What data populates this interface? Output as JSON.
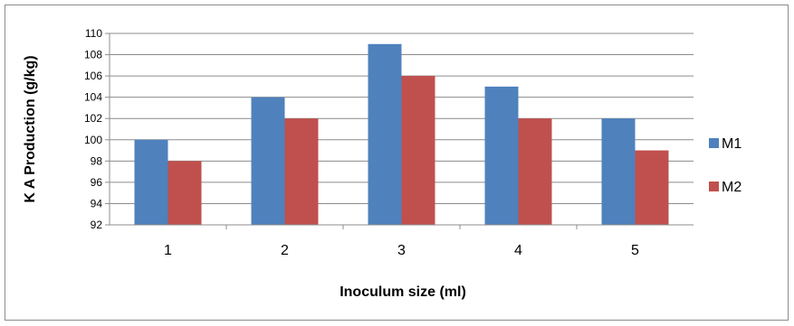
{
  "chart_data": {
    "type": "bar",
    "categories": [
      "1",
      "2",
      "3",
      "4",
      "5"
    ],
    "series": [
      {
        "name": "M1",
        "values": [
          100,
          104,
          109,
          105,
          102
        ],
        "color": "#4f81bd"
      },
      {
        "name": "M2",
        "values": [
          98,
          102,
          106,
          102,
          99
        ],
        "color": "#c0504d"
      }
    ],
    "xlabel": "Inoculum size (ml)",
    "ylabel": "K A Production (g/kg)",
    "ylim": [
      92,
      110
    ],
    "yticks": [
      92,
      94,
      96,
      98,
      100,
      102,
      104,
      106,
      108,
      110
    ],
    "grid": true,
    "legend": "right"
  }
}
